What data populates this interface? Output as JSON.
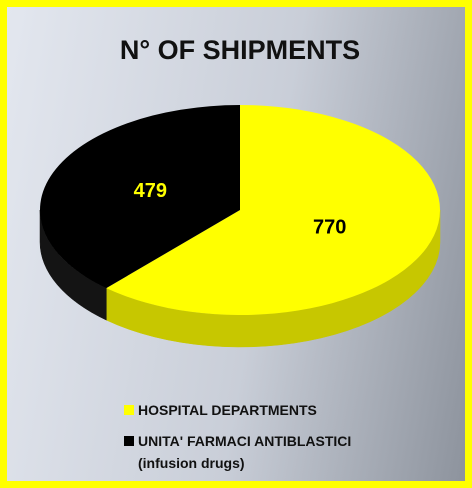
{
  "chart_data": {
    "type": "pie3d",
    "title": "N° OF SHIPMENTS",
    "categories": [
      "HOSPITAL DEPARTMENTS",
      "UNITA' FARMACI ANTIBLASTICI\n(infusion drugs)"
    ],
    "values": [
      770,
      479
    ],
    "colors": [
      "#ffff00",
      "#000000"
    ],
    "label_colors": [
      "#000000",
      "#ffff00"
    ]
  }
}
